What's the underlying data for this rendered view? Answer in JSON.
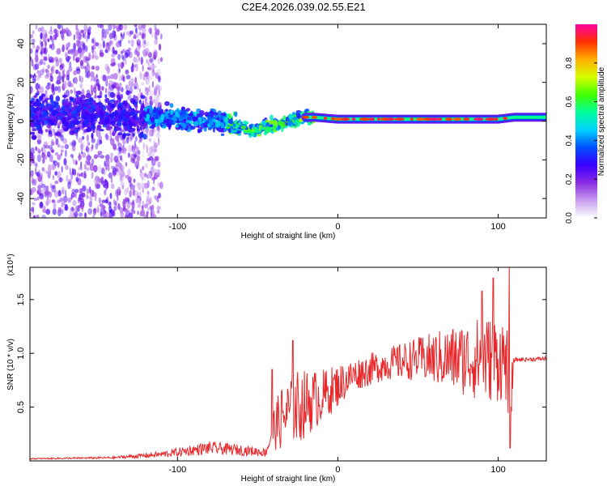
{
  "title": "C2E4.2026.039.02.55.E21",
  "chart_data": [
    {
      "type": "heatmap",
      "name": "spectrogram",
      "xlabel": "Height of straight line (km)",
      "ylabel": "Frequency (Hz)",
      "xlim": [
        -192,
        130
      ],
      "ylim": [
        -50,
        50
      ],
      "xticks": [
        "-100",
        "0",
        "100"
      ],
      "yticks": [
        "-40",
        "-20",
        "0",
        "20",
        "40"
      ],
      "colorbar": {
        "label": "Normalized spectral amplitude",
        "range": [
          0,
          1
        ],
        "ticks": [
          "0.0",
          "0.2",
          "0.4",
          "0.6",
          "0.8"
        ],
        "colors": [
          "#ffffff",
          "#c79cf0",
          "#8a2be2",
          "#3a00ff",
          "#0050ff",
          "#00d0ff",
          "#00ff9a",
          "#40ff00",
          "#d6ff00",
          "#ffb000",
          "#ff3000",
          "#ff00a0"
        ]
      },
      "ridge": {
        "x": [
          -130,
          -110,
          -90,
          -75,
          -65,
          -58,
          -52,
          -45,
          -38,
          -30,
          -22,
          -15,
          0,
          40,
          80,
          100,
          110,
          130
        ],
        "y": [
          3,
          2,
          1,
          0,
          -2,
          -3,
          -5,
          -3,
          -2,
          0,
          2,
          2,
          1,
          1,
          1,
          1,
          2,
          2
        ]
      }
    },
    {
      "type": "line",
      "name": "snr",
      "xlabel": "Height of straight line (km)",
      "ylabel": "SNR (10 * v/v)",
      "scale_label": "(x10⁴)",
      "xlim": [
        -192,
        130
      ],
      "ylim": [
        0,
        1.8
      ],
      "xticks": [
        "-100",
        "0",
        "100"
      ],
      "yticks": [
        "0.5",
        "1.0",
        "1.5"
      ],
      "color": "#e8282b",
      "envelope": {
        "x": [
          -192,
          -140,
          -110,
          -80,
          -60,
          -45,
          -40,
          -35,
          -25,
          -10,
          10,
          30,
          50,
          70,
          90,
          105,
          107,
          110,
          130
        ],
        "base": [
          0.02,
          0.03,
          0.06,
          0.12,
          0.1,
          0.08,
          0.3,
          0.4,
          0.5,
          0.6,
          0.8,
          0.9,
          0.95,
          0.95,
          0.95,
          0.95,
          0.4,
          0.94,
          0.95
        ],
        "noise": [
          0.005,
          0.01,
          0.03,
          0.06,
          0.05,
          0.04,
          0.2,
          0.3,
          0.35,
          0.25,
          0.15,
          0.15,
          0.2,
          0.3,
          0.4,
          0.4,
          0.5,
          0.02,
          0.02
        ]
      },
      "peaks": [
        {
          "x": -41,
          "y": 0.85
        },
        {
          "x": -28,
          "y": 1.12
        },
        {
          "x": 90,
          "y": 1.58
        },
        {
          "x": 97,
          "y": 1.7
        },
        {
          "x": 107,
          "y": 1.82
        },
        {
          "x": 107.5,
          "y": 0.12
        }
      ]
    }
  ]
}
